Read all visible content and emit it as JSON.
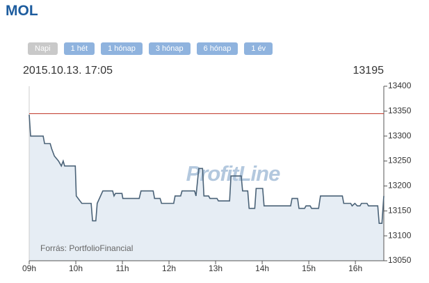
{
  "chart_data": {
    "type": "line",
    "title": "MOL",
    "range_buttons": [
      "Napi",
      "1 hét",
      "1 hónap",
      "3 hónap",
      "6 hónap",
      "1 év"
    ],
    "active_button": 0,
    "timestamp": "2015.10.13. 17:05",
    "last_price": 13195,
    "watermark": "ProfitLine",
    "source": "Forrás: PortfolioFinancial",
    "color": "#4a6277",
    "area_color": "#e6edf4",
    "x": [
      9.0,
      9.03,
      9.3,
      9.33,
      9.45,
      9.48,
      9.54,
      9.63,
      9.69,
      9.73,
      9.76,
      9.99,
      10.01,
      10.13,
      10.33,
      10.36,
      10.43,
      10.46,
      10.58,
      10.79,
      10.82,
      10.85,
      10.99,
      11.01,
      11.36,
      11.4,
      11.66,
      11.69,
      11.81,
      11.84,
      12.1,
      12.13,
      12.25,
      12.28,
      12.55,
      12.58,
      12.64,
      12.72,
      12.75,
      12.85,
      12.88,
      13.03,
      13.06,
      13.3,
      13.33,
      13.55,
      13.58,
      13.69,
      13.72,
      13.84,
      13.87,
      14.01,
      14.04,
      14.61,
      14.64,
      14.76,
      14.79,
      14.91,
      14.94,
      15.03,
      15.06,
      15.21,
      15.25,
      15.72,
      15.75,
      15.9,
      15.93,
      15.99,
      16.04,
      16.1,
      16.13,
      16.25,
      16.28,
      16.48,
      16.51,
      16.57,
      16.61
    ],
    "values": [
      13343,
      13300,
      13300,
      13285,
      13285,
      13275,
      13260,
      13250,
      13240,
      13250,
      13240,
      13240,
      13180,
      13165,
      13165,
      13130,
      13130,
      13165,
      13190,
      13190,
      13180,
      13185,
      13185,
      13175,
      13175,
      13190,
      13190,
      13175,
      13175,
      13165,
      13165,
      13180,
      13180,
      13190,
      13190,
      13180,
      13235,
      13235,
      13180,
      13180,
      13175,
      13175,
      13170,
      13170,
      13220,
      13220,
      13190,
      13190,
      13155,
      13155,
      13195,
      13195,
      13160,
      13160,
      13175,
      13175,
      13155,
      13155,
      13160,
      13160,
      13155,
      13155,
      13180,
      13180,
      13165,
      13165,
      13160,
      13165,
      13160,
      13160,
      13165,
      13165,
      13160,
      13160,
      13125,
      13125,
      13180
    ],
    "xlim": [
      9,
      16.61
    ],
    "xticks": [
      {
        "value": 9,
        "label": "09h"
      },
      {
        "value": 10,
        "label": "10h"
      },
      {
        "value": 11,
        "label": "11h"
      },
      {
        "value": 12,
        "label": "12h"
      },
      {
        "value": 13,
        "label": "13h"
      },
      {
        "value": 14,
        "label": "14h"
      },
      {
        "value": 15,
        "label": "15h"
      },
      {
        "value": 16,
        "label": "16h"
      }
    ],
    "ylim": [
      13050,
      13400
    ],
    "yticks": [
      13050,
      13100,
      13150,
      13200,
      13250,
      13300,
      13350,
      13400
    ],
    "reference_line": {
      "value": 13345,
      "color": "#c0392b"
    }
  }
}
